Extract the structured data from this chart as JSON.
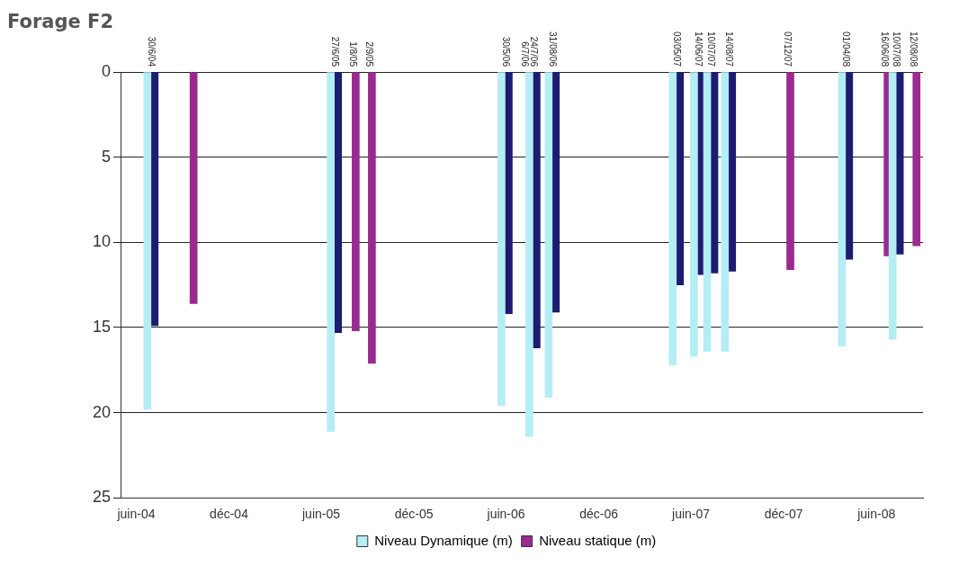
{
  "chart_data": {
    "type": "bar",
    "title": "Forage F2",
    "x": [
      "2004-06-30",
      "2004-09-15",
      "2005-06-27",
      "2005-08-01",
      "2005-09-02",
      "2006-05-30",
      "2006-07-24",
      "2006-08-31",
      "2007-05-03",
      "2007-06-14",
      "2007-07-10",
      "2007-08-14",
      "2007-12-07",
      "2008-04-01",
      "2008-06-16",
      "2008-07-10",
      "2008-08-12"
    ],
    "series": [
      {
        "name": "Niveau Dynamique (m)",
        "color": "#b5edf5",
        "values": [
          19.8,
          null,
          21.1,
          null,
          null,
          19.6,
          21.4,
          19.1,
          17.2,
          16.7,
          16.4,
          16.4,
          null,
          16.1,
          null,
          15.7,
          null
        ]
      },
      {
        "name": "Niveau statique (m)",
        "color": "#9b2a8f",
        "colors": [
          "#1c1c70",
          "#9b2a8f",
          "#1c1c70",
          "#9b2a8f",
          "#9b2a8f",
          "#1c1c70",
          "#1c1c70",
          "#1c1c70",
          "#1c1c70",
          "#1c1c70",
          "#1c1c70",
          "#1c1c70",
          "#9b2a8f",
          "#1c1c70",
          "#9b2a8f",
          "#1c1c70",
          "#9b2a8f"
        ],
        "values": [
          14.9,
          13.6,
          15.3,
          15.2,
          17.1,
          14.2,
          16.2,
          14.1,
          12.5,
          11.9,
          11.8,
          11.7,
          11.6,
          11.0,
          10.8,
          10.7,
          10.2
        ]
      }
    ],
    "ylim": [
      25,
      0
    ],
    "yticks": [
      0,
      5,
      10,
      15,
      20,
      25
    ],
    "xlim": [
      "2004-05-01",
      "2008-09-01"
    ],
    "xticks": [
      {
        "value": "2004-06-01",
        "label": "juin-04"
      },
      {
        "value": "2004-12-01",
        "label": "déc-04"
      },
      {
        "value": "2005-06-01",
        "label": "juin-05"
      },
      {
        "value": "2005-12-01",
        "label": "déc-05"
      },
      {
        "value": "2006-06-01",
        "label": "juin-06"
      },
      {
        "value": "2006-12-01",
        "label": "déc-06"
      },
      {
        "value": "2007-06-01",
        "label": "juin-07"
      },
      {
        "value": "2007-12-01",
        "label": "déc-07"
      },
      {
        "value": "2008-06-01",
        "label": "juin-08"
      }
    ],
    "grid": "y",
    "legend": "bottom",
    "annotations": [
      {
        "text": "30/6/04",
        "x": "2004-06-30",
        "y": 0
      },
      {
        "text": "27/6/05",
        "x": "2005-06-27",
        "y": 0
      },
      {
        "text": "1/8/05",
        "x": "2005-08-01",
        "y": 0
      },
      {
        "text": "2/9/05",
        "x": "2005-09-02",
        "y": 0
      },
      {
        "text": "30/5/06",
        "x": "2006-05-30",
        "y": 0
      },
      {
        "text": "6/7/06",
        "x": "2006-07-06",
        "y": 0
      },
      {
        "text": "24/7/06",
        "x": "2006-07-24",
        "y": 0
      },
      {
        "text": "31/08/06",
        "x": "2006-08-31",
        "y": 0
      },
      {
        "text": "03/05/07",
        "x": "2007-05-03",
        "y": 0
      },
      {
        "text": "14/06/07",
        "x": "2007-06-14",
        "y": 0
      },
      {
        "text": "10/07/07",
        "x": "2007-07-10",
        "y": 0
      },
      {
        "text": "14/08/07",
        "x": "2007-08-14",
        "y": 0
      },
      {
        "text": "07/12/07",
        "x": "2007-12-07",
        "y": 0
      },
      {
        "text": "01/04/08",
        "x": "2008-04-01",
        "y": 0
      },
      {
        "text": "16/06/08",
        "x": "2008-06-16",
        "y": 0
      },
      {
        "text": "10/07/08",
        "x": "2008-07-10",
        "y": 0
      },
      {
        "text": "12/08/08",
        "x": "2008-08-12",
        "y": 0
      }
    ]
  }
}
